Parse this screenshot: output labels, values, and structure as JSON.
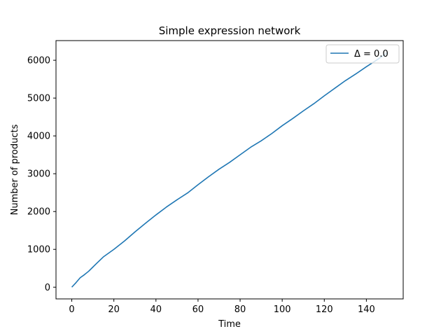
{
  "chart_data": {
    "type": "line",
    "title": "Simple expression network",
    "xlabel": "Time",
    "ylabel": "Number of products",
    "xlim": [
      -7.5,
      157.5
    ],
    "ylim": [
      -310,
      6520
    ],
    "x_ticks": [
      0,
      20,
      40,
      60,
      80,
      100,
      120,
      140
    ],
    "y_ticks": [
      0,
      1000,
      2000,
      3000,
      4000,
      5000,
      6000
    ],
    "grid": false,
    "legend_position": "top-right",
    "series": [
      {
        "name": "Δ = 0.0",
        "color": "#1f77b4",
        "x": [
          0,
          2,
          4,
          6,
          8,
          10,
          12,
          15,
          20,
          25,
          30,
          35,
          40,
          45,
          50,
          55,
          60,
          65,
          70,
          75,
          80,
          85,
          90,
          95,
          100,
          105,
          110,
          115,
          120,
          125,
          130,
          135,
          140,
          145,
          150
        ],
        "y": [
          0,
          120,
          250,
          330,
          420,
          530,
          640,
          800,
          1000,
          1220,
          1460,
          1690,
          1910,
          2120,
          2310,
          2490,
          2710,
          2920,
          3120,
          3300,
          3500,
          3700,
          3870,
          4060,
          4270,
          4460,
          4660,
          4850,
          5060,
          5260,
          5460,
          5640,
          5830,
          6010,
          6200
        ]
      }
    ]
  }
}
